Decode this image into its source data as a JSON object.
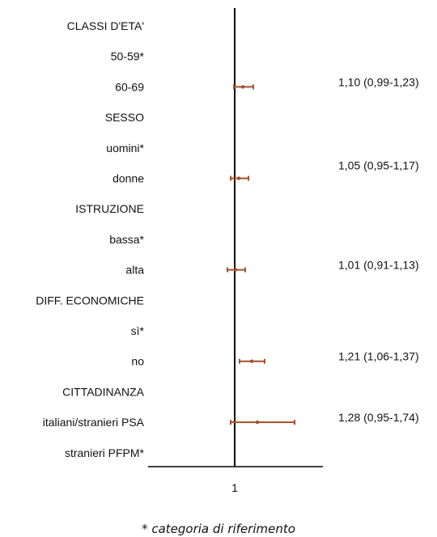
{
  "chart_data": {
    "type": "forest",
    "reference_value": 1,
    "x_ticks": [
      "1"
    ],
    "rows": [
      {
        "label": "CLASSI D'ETA'",
        "header": true
      },
      {
        "label": "50-59*"
      },
      {
        "label": "60-69",
        "estimate": 1.1,
        "lower": 0.99,
        "upper": 1.23,
        "text": "1,10 (0,99-1,23)"
      },
      {
        "label": "SESSO",
        "header": true
      },
      {
        "label": "uomini*"
      },
      {
        "label": "donne",
        "estimate": 1.05,
        "lower": 0.95,
        "upper": 1.17,
        "text": "1,05 (0,95-1,17)"
      },
      {
        "label": "ISTRUZIONE",
        "header": true
      },
      {
        "label": "bassa*"
      },
      {
        "label": "alta",
        "estimate": 1.01,
        "lower": 0.91,
        "upper": 1.13,
        "text": "1,01 (0,91-1,13)"
      },
      {
        "label": "DIFF. ECONOMICHE",
        "header": true
      },
      {
        "label": "sì*"
      },
      {
        "label": "no",
        "estimate": 1.21,
        "lower": 1.06,
        "upper": 1.37,
        "text": "1,21 (1,06-1,37)"
      },
      {
        "label": "CITTADINANZA",
        "header": true
      },
      {
        "label": "italiani/stranieri PSA",
        "estimate": 1.28,
        "lower": 0.95,
        "upper": 1.74,
        "text": "1,28 (0,95-1,74)"
      },
      {
        "label": "stranieri PFPM*"
      }
    ],
    "marker_color": "#a0522d"
  },
  "footnote": "* categoria di riferimento"
}
